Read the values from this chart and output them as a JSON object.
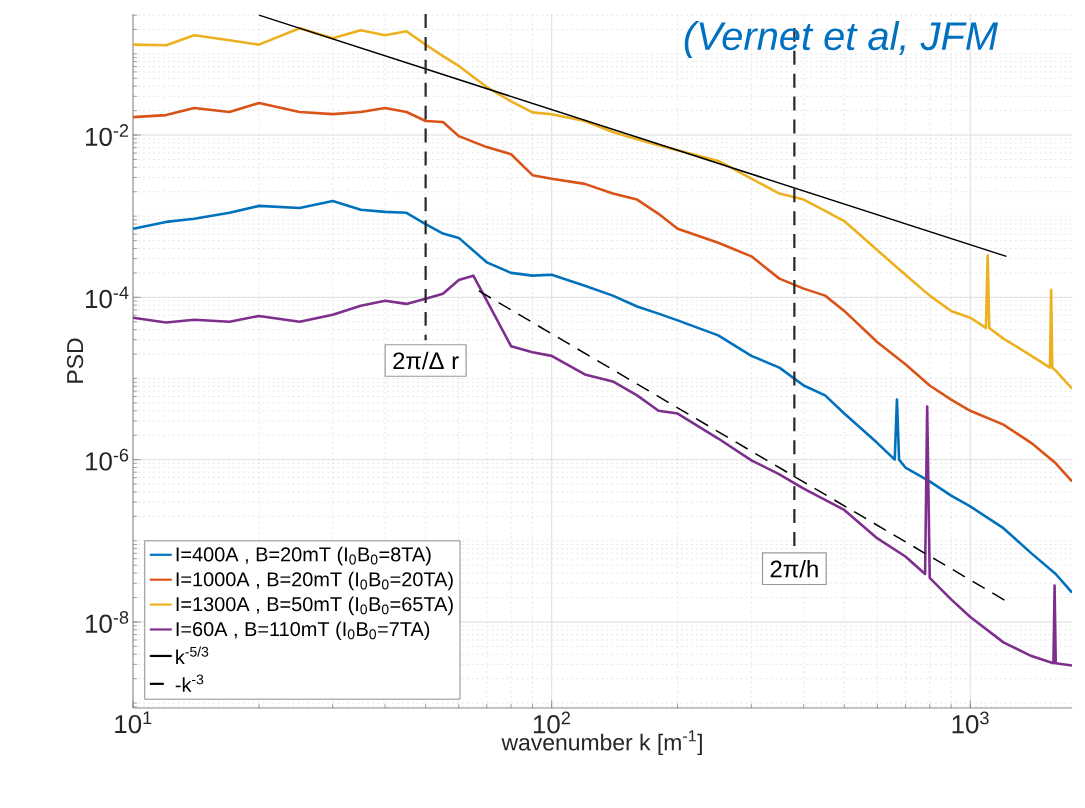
{
  "chart_data": {
    "type": "line",
    "xlabel": "wavenumber k [m$^{-1}$]",
    "ylabel": "PSD",
    "annotations": [
      "(Vernet et al, JFM"
    ],
    "log": "xy",
    "grid": true,
    "legend": "bottom left",
    "marker": "none",
    "xlim": [
      10,
      1750
    ],
    "ylim": [
      8.7e-10,
      0.31
    ],
    "xticks": [
      {
        "value": 10,
        "label": "10$^{1}$"
      },
      {
        "value": 100,
        "label": "10$^{2}$"
      },
      {
        "value": 1000,
        "label": "10$^{3}$"
      }
    ],
    "yticks": [
      {
        "value": 1e-08,
        "label": "10$^{-8}$"
      },
      {
        "value": 1e-06,
        "label": "10$^{-6}$"
      },
      {
        "value": 0.0001,
        "label": "10$^{-4}$"
      },
      {
        "value": 0.01,
        "label": "10$^{-2}$"
      }
    ],
    "ref_lines": [
      {
        "axis": "x",
        "value": 50,
        "label": "2π/Δ r",
        "line_style": "dashed"
      },
      {
        "axis": "x",
        "value": 380,
        "label": "2π/h",
        "line_style": "dashed"
      }
    ],
    "series": [
      {
        "name": "I=400A , B=20mT  (I$_{0}$B$_{0}$=8TA)",
        "color": "#0072bd",
        "x": [
          10,
          12,
          14,
          17,
          20,
          25,
          30,
          35,
          40,
          45,
          50,
          55,
          60,
          70,
          80,
          90,
          100,
          120,
          140,
          160,
          180,
          200,
          250,
          300,
          350,
          400,
          450,
          500,
          600,
          660,
          668,
          676,
          700,
          800,
          900,
          1000,
          1200,
          1400,
          1600,
          1750
        ],
        "values": [
          0.0007,
          0.00085,
          0.00093,
          0.0011,
          0.00134,
          0.00126,
          0.00154,
          0.0012,
          0.00113,
          0.0011,
          0.0008,
          0.00061,
          0.00054,
          0.00027,
          0.0002,
          0.000185,
          0.00019,
          0.000139,
          0.000105,
          7.7e-05,
          6.3e-05,
          5.2e-05,
          3.4e-05,
          1.9e-05,
          1.36e-05,
          8.2e-06,
          6.2e-06,
          3.7e-06,
          1.6e-06,
          1e-06,
          5.5e-06,
          1e-06,
          8e-07,
          5.4e-07,
          3.6e-07,
          2.65e-07,
          1.43e-07,
          7e-08,
          3.9e-08,
          2.3e-08
        ]
      },
      {
        "name": "I=1000A , B=20mT (I$_{0}$B$_{0}$=20TA)",
        "color": "#d95319",
        "x": [
          10,
          12,
          14,
          17,
          20,
          25,
          30,
          35,
          40,
          45,
          50,
          55,
          60,
          70,
          80,
          90,
          100,
          120,
          140,
          160,
          180,
          200,
          250,
          300,
          350,
          400,
          450,
          500,
          600,
          700,
          800,
          900,
          1000,
          1200,
          1400,
          1600,
          1750
        ],
        "values": [
          0.0166,
          0.0176,
          0.0215,
          0.0192,
          0.0248,
          0.0192,
          0.0181,
          0.0192,
          0.0215,
          0.0192,
          0.0149,
          0.0145,
          0.0097,
          0.0071,
          0.0058,
          0.0032,
          0.0029,
          0.0025,
          0.0019,
          0.0016,
          0.00107,
          0.0007,
          0.00047,
          0.00032,
          0.00017,
          0.000128,
          0.000105,
          6.8e-05,
          2.8e-05,
          1.5e-05,
          8.2e-06,
          5.5e-06,
          4e-06,
          2.7e-06,
          1.6e-06,
          9e-07,
          5.4e-07
        ]
      },
      {
        "name": "I=1300A , B=50mT (I$_{0}$B$_{0}$=65TA)",
        "color": "#edb120",
        "x": [
          10,
          12,
          14,
          17,
          20,
          25,
          30,
          35,
          40,
          45,
          50,
          55,
          60,
          70,
          80,
          90,
          100,
          120,
          140,
          160,
          180,
          200,
          250,
          300,
          350,
          400,
          450,
          500,
          600,
          700,
          800,
          900,
          1000,
          1090,
          1100,
          1110,
          1200,
          1400,
          1550,
          1560,
          1570,
          1600,
          1750
        ],
        "values": [
          0.13,
          0.128,
          0.17,
          0.147,
          0.13,
          0.207,
          0.156,
          0.196,
          0.17,
          0.19,
          0.13,
          0.094,
          0.071,
          0.039,
          0.026,
          0.019,
          0.018,
          0.0149,
          0.0109,
          0.0089,
          0.0075,
          0.0065,
          0.0048,
          0.0029,
          0.0019,
          0.0016,
          0.00116,
          0.00087,
          0.00038,
          0.00019,
          0.000105,
          6.8e-05,
          5.6e-05,
          4.2e-05,
          0.00033,
          4.2e-05,
          3.1e-05,
          1.9e-05,
          1.36e-05,
          0.000124,
          1.36e-05,
          1.25e-05,
          7.5e-06
        ]
      },
      {
        "name": "I=60A , B=110mT (I$_{0}$B$_{0}$=7TA)",
        "color": "#7e2f8e",
        "x": [
          10,
          12,
          14,
          17,
          20,
          25,
          30,
          35,
          40,
          45,
          50,
          55,
          60,
          65,
          70,
          80,
          90,
          100,
          120,
          140,
          160,
          180,
          200,
          250,
          300,
          350,
          400,
          450,
          500,
          600,
          700,
          780,
          789,
          800,
          900,
          1000,
          1200,
          1400,
          1580,
          1590,
          1600,
          1750
        ],
        "values": [
          5.6e-05,
          4.9e-05,
          5.3e-05,
          5e-05,
          5.9e-05,
          5e-05,
          6.1e-05,
          7.9e-05,
          9.1e-05,
          8.3e-05,
          9.6e-05,
          0.000111,
          0.000164,
          0.000185,
          9.1e-05,
          2.5e-05,
          2.1e-05,
          1.9e-05,
          1.12e-05,
          9.2e-06,
          6.2e-06,
          4e-06,
          3.7e-06,
          1.82e-06,
          9.8e-07,
          6.6e-07,
          4.4e-07,
          3.2e-07,
          2.4e-07,
          1.07e-07,
          6.4e-08,
          3.9e-08,
          4.5e-06,
          3.5e-08,
          1.9e-08,
          1.15e-08,
          5.6e-09,
          3.8e-09,
          3.1e-09,
          2.8e-08,
          3.1e-09,
          2.9e-09
        ]
      },
      {
        "name": "k$^{-5/3}$",
        "color": "#000000",
        "line_style": "solid",
        "x": [
          20,
          1220
        ],
        "values": [
          0.3,
          0.00032
        ]
      },
      {
        "name": "-k$^{-3}$",
        "color": "#000000",
        "line_style": "dashed",
        "x": [
          67,
          1220
        ],
        "values": [
          0.00012,
          1.8e-08
        ]
      }
    ]
  }
}
